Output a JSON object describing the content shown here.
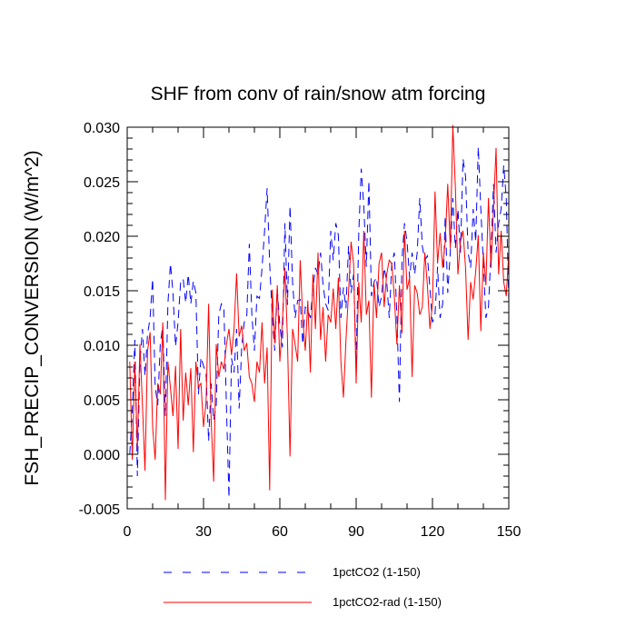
{
  "chart_data": {
    "type": "line",
    "title": "SHF from conv of rain/snow atm forcing",
    "xlabel": "",
    "ylabel": "FSH_PRECIP_CONVERSION  (W/m^2)",
    "xlim": [
      0,
      150
    ],
    "ylim": [
      -0.005,
      0.03
    ],
    "xticks": [
      0,
      30,
      60,
      90,
      120,
      150
    ],
    "xtick_labels": [
      "0",
      "30",
      "60",
      "90",
      "120",
      "150"
    ],
    "yticks": [
      -0.005,
      0.0,
      0.005,
      0.01,
      0.015,
      0.02,
      0.025,
      0.03
    ],
    "ytick_labels": [
      "-0.005",
      "0.000",
      "0.005",
      "0.010",
      "0.015",
      "0.020",
      "0.025",
      "0.030"
    ],
    "grid": false,
    "legend_position": "bottom",
    "series": [
      {
        "name": "1pctCO2 (1-150)",
        "color": "#0000ff",
        "dash": "dashed",
        "x": [
          1,
          2,
          3,
          4,
          5,
          6,
          7,
          8,
          9,
          10,
          11,
          12,
          13,
          14,
          15,
          16,
          17,
          18,
          19,
          20,
          21,
          22,
          23,
          24,
          25,
          26,
          27,
          28,
          29,
          30,
          31,
          32,
          33,
          34,
          35,
          36,
          37,
          38,
          39,
          40,
          41,
          42,
          43,
          44,
          45,
          46,
          47,
          48,
          49,
          50,
          51,
          52,
          53,
          54,
          55,
          56,
          57,
          58,
          59,
          60,
          61,
          62,
          63,
          64,
          65,
          66,
          67,
          68,
          69,
          70,
          71,
          72,
          73,
          74,
          75,
          76,
          77,
          78,
          79,
          80,
          81,
          82,
          83,
          84,
          85,
          86,
          87,
          88,
          89,
          90,
          91,
          92,
          93,
          94,
          95,
          96,
          97,
          98,
          99,
          100,
          101,
          102,
          103,
          104,
          105,
          106,
          107,
          108,
          109,
          110,
          111,
          112,
          113,
          114,
          115,
          116,
          117,
          118,
          119,
          120,
          121,
          122,
          123,
          124,
          125,
          126,
          127,
          128,
          129,
          130,
          131,
          132,
          133,
          134,
          135,
          136,
          137,
          138,
          139,
          140,
          141,
          142,
          143,
          144,
          145,
          146,
          147,
          148,
          149,
          150
        ],
        "y": [
          0.0,
          0.004,
          0.0105,
          -0.002,
          0.0085,
          0.0115,
          0.0072,
          0.011,
          0.0125,
          0.0161,
          0.0062,
          0.0045,
          0.0101,
          0.0118,
          0.0035,
          0.0138,
          0.0175,
          0.0148,
          0.0099,
          0.0121,
          0.0158,
          0.0161,
          0.0139,
          0.0165,
          0.0138,
          0.0159,
          0.0148,
          0.0055,
          0.0089,
          0.0081,
          0.0075,
          0.0012,
          0.0065,
          0.0031,
          0.0045,
          0.0128,
          0.0138,
          0.0135,
          0.0045,
          -0.004,
          0.0088,
          0.0075,
          0.0115,
          0.0042,
          0.0098,
          0.0121,
          0.0127,
          0.0193,
          0.0128,
          0.0095,
          0.0145,
          0.0143,
          0.0171,
          0.0205,
          0.0244,
          0.0175,
          0.0128,
          0.0095,
          0.0152,
          0.0118,
          0.0098,
          0.0212,
          0.0137,
          0.0228,
          0.0158,
          0.0125,
          0.0141,
          0.0142,
          0.0101,
          0.0135,
          0.0132,
          0.0125,
          0.0152,
          0.0171,
          0.0165,
          0.0185,
          0.0155,
          0.0138,
          0.0132,
          0.0205,
          0.0178,
          0.0212,
          0.0201,
          0.0125,
          0.0153,
          0.0134,
          0.0191,
          0.0148,
          0.0165,
          0.0083,
          0.0201,
          0.0262,
          0.0228,
          0.0172,
          0.0251,
          0.0145,
          0.0158,
          0.0162,
          0.0135,
          0.0145,
          0.0171,
          0.0159,
          0.0125,
          0.0175,
          0.0185,
          0.0128,
          0.0048,
          0.0178,
          0.0212,
          0.0195,
          0.0162,
          0.0185,
          0.0165,
          0.0185,
          0.0235,
          0.0191,
          0.0178,
          0.0182,
          0.0152,
          0.0121,
          0.0128,
          0.0172,
          0.0125,
          0.0138,
          0.0218,
          0.0148,
          0.0185,
          0.0235,
          0.0189,
          0.0225,
          0.0185,
          0.0271,
          0.0255,
          0.0185,
          0.0171,
          0.0225,
          0.0195,
          0.0282,
          0.0225,
          0.0175,
          0.0125,
          0.0135,
          0.0185,
          0.0248,
          0.0185,
          0.0212,
          0.0225,
          0.0265,
          0.0235,
          0.0141
        ]
      },
      {
        "name": "1pctCO2-rad (1-150)",
        "color": "#ff0000",
        "dash": "solid",
        "x": [
          1,
          2,
          3,
          4,
          5,
          6,
          7,
          8,
          9,
          10,
          11,
          12,
          13,
          14,
          15,
          16,
          17,
          18,
          19,
          20,
          21,
          22,
          23,
          24,
          25,
          26,
          27,
          28,
          29,
          30,
          31,
          32,
          33,
          34,
          35,
          36,
          37,
          38,
          39,
          40,
          41,
          42,
          43,
          44,
          45,
          46,
          47,
          48,
          49,
          50,
          51,
          52,
          53,
          54,
          55,
          56,
          57,
          58,
          59,
          60,
          61,
          62,
          63,
          64,
          65,
          66,
          67,
          68,
          69,
          70,
          71,
          72,
          73,
          74,
          75,
          76,
          77,
          78,
          79,
          80,
          81,
          82,
          83,
          84,
          85,
          86,
          87,
          88,
          89,
          90,
          91,
          92,
          93,
          94,
          95,
          96,
          97,
          98,
          99,
          100,
          101,
          102,
          103,
          104,
          105,
          106,
          107,
          108,
          109,
          110,
          111,
          112,
          113,
          114,
          115,
          116,
          117,
          118,
          119,
          120,
          121,
          122,
          123,
          124,
          125,
          126,
          127,
          128,
          129,
          130,
          131,
          132,
          133,
          134,
          135,
          136,
          137,
          138,
          139,
          140,
          141,
          142,
          143,
          144,
          145,
          146,
          147,
          148,
          149,
          150
        ],
        "y": [
          0.0085,
          -0.0005,
          0.0085,
          0.0005,
          0.0101,
          0.0045,
          -0.0015,
          0.0095,
          0.0112,
          0.0025,
          -0.0005,
          0.0065,
          0.0055,
          0.0121,
          -0.0042,
          0.0085,
          0.0061,
          0.0035,
          0.0081,
          0.0005,
          0.0115,
          0.0031,
          0.0075,
          0.0045,
          0.0079,
          0.0002,
          0.0085,
          0.0062,
          0.0065,
          0.0025,
          0.0048,
          0.0138,
          0.0031,
          -0.0025,
          0.0101,
          0.0071,
          0.0085,
          0.0078,
          0.0101,
          0.0115,
          0.0091,
          0.0115,
          0.0166,
          0.0108,
          0.0118,
          0.0095,
          0.0102,
          0.0071,
          0.0065,
          0.0048,
          0.0085,
          0.0075,
          0.0121,
          0.0065,
          0.0098,
          -0.0033,
          0.0151,
          0.0102,
          0.0155,
          0.0085,
          0.0121,
          0.0171,
          0.0105,
          -0.0002,
          0.0115,
          0.0101,
          0.0085,
          0.0178,
          0.0125,
          0.0095,
          0.0141,
          0.0075,
          0.0165,
          0.0115,
          0.0185,
          0.0105,
          0.0135,
          0.0085,
          0.0128,
          0.0121,
          0.0152,
          0.0115,
          0.0162,
          0.0085,
          0.0052,
          0.0105,
          0.0148,
          0.0195,
          0.0175,
          0.0065,
          0.0158,
          0.0121,
          0.0205,
          0.0128,
          0.0141,
          0.0052,
          0.0158,
          0.0125,
          0.0175,
          0.0185,
          0.0135,
          0.0165,
          0.0178,
          0.0175,
          0.0145,
          0.0101,
          0.0155,
          0.0111,
          0.0205,
          0.0151,
          0.0162,
          0.0071,
          0.0155,
          0.0148,
          0.0128,
          0.0135,
          0.0185,
          0.0155,
          0.0115,
          0.0138,
          0.0241,
          0.0175,
          0.0203,
          0.0171,
          0.0195,
          0.0248,
          0.0189,
          0.0302,
          0.0245,
          0.0165,
          0.0195,
          0.0205,
          0.0171,
          0.0105,
          0.0158,
          0.0142,
          0.0168,
          0.0201,
          0.0113,
          0.0185,
          0.0155,
          0.0235,
          0.0171,
          0.0225,
          0.0281,
          0.0165,
          0.0205,
          0.0158,
          0.0145,
          0.0185
        ]
      }
    ]
  }
}
